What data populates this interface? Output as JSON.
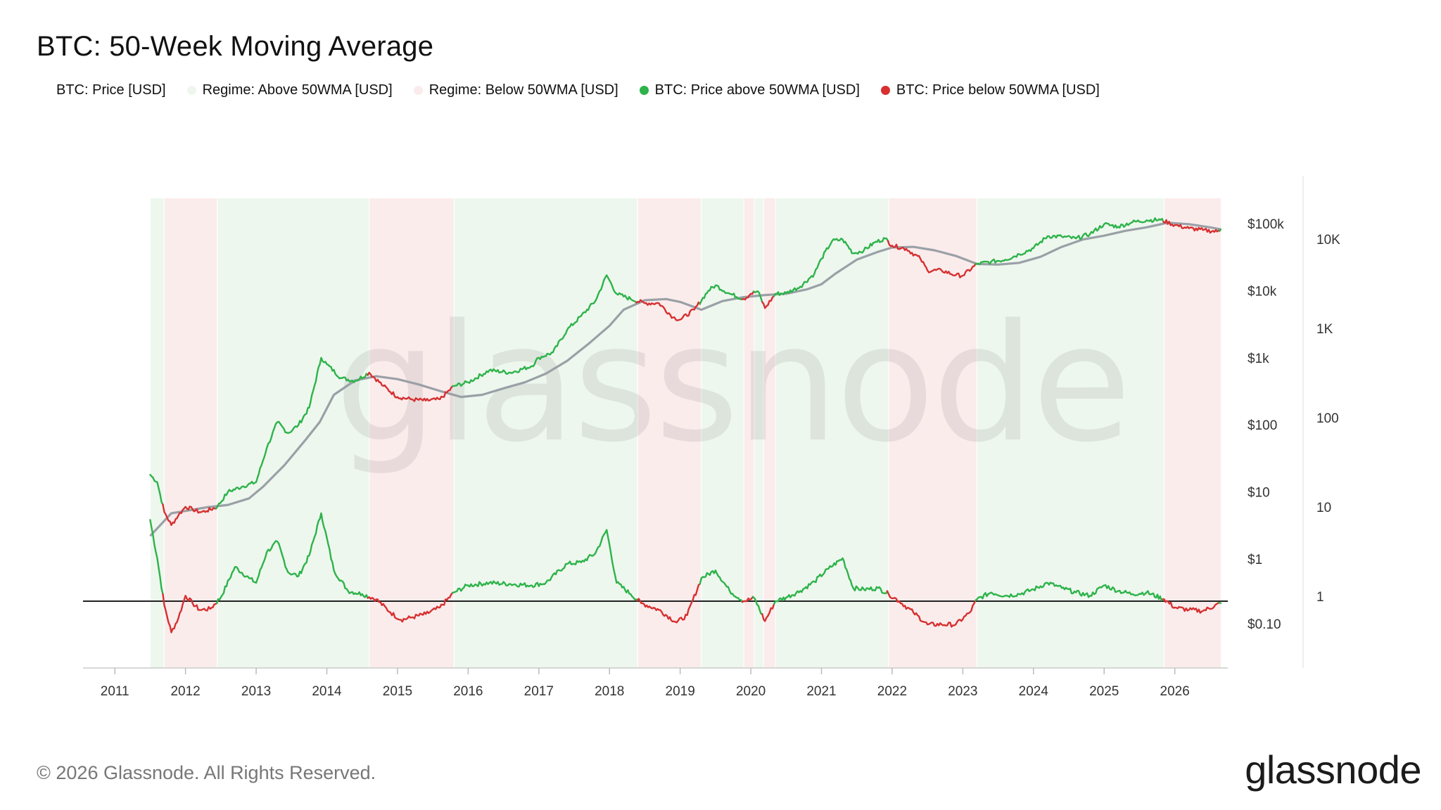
{
  "header": {
    "title": "BTC: 50-Week Moving Average"
  },
  "legend": [
    {
      "label": "BTC: Price [USD]",
      "color": "#ffffff"
    },
    {
      "label": "Regime: Above 50WMA [USD]",
      "color": "#eef7ee"
    },
    {
      "label": "Regime: Below 50WMA [USD]",
      "color": "#fbecec"
    },
    {
      "label": "BTC: Price above 50WMA [USD]",
      "color": "#2db34a"
    },
    {
      "label": "BTC: Price below 50WMA [USD]",
      "color": "#d63030"
    }
  ],
  "watermark": "glassnode",
  "footer": {
    "copyright": "© 2026 Glassnode. All Rights Reserved.",
    "brand": "glassnode"
  },
  "colors": {
    "above": "#2db34a",
    "below": "#d63030",
    "ma": "#9aa0a6",
    "regime_above_bg": "#eef7ee",
    "regime_below_bg": "#fbecec",
    "ratio_baseline": "#222222"
  },
  "chart_data": {
    "type": "line",
    "x_axis": {
      "ticks": [
        "2011",
        "2012",
        "2013",
        "2014",
        "2015",
        "2016",
        "2017",
        "2018",
        "2019",
        "2020",
        "2021",
        "2022",
        "2023",
        "2024",
        "2025",
        "2026"
      ],
      "range": [
        2010.55,
        2026.75
      ]
    },
    "y_axis_left": {
      "scale": "log",
      "ticks": [
        "$100k",
        "$10k",
        "$1k",
        "$100",
        "$10",
        "$1",
        "$0.10"
      ]
    },
    "y_axis_right": {
      "scale": "log",
      "ticks": [
        "10K",
        "1K",
        "100",
        "10",
        "1"
      ]
    },
    "regimes": [
      {
        "start": 2011.5,
        "end": 2011.7,
        "regime": "above"
      },
      {
        "start": 2011.7,
        "end": 2012.45,
        "regime": "below"
      },
      {
        "start": 2012.45,
        "end": 2014.6,
        "regime": "above"
      },
      {
        "start": 2014.6,
        "end": 2015.8,
        "regime": "below"
      },
      {
        "start": 2015.8,
        "end": 2018.4,
        "regime": "above"
      },
      {
        "start": 2018.4,
        "end": 2019.3,
        "regime": "below"
      },
      {
        "start": 2019.3,
        "end": 2019.9,
        "regime": "above"
      },
      {
        "start": 2019.9,
        "end": 2020.05,
        "regime": "below"
      },
      {
        "start": 2020.05,
        "end": 2020.18,
        "regime": "above"
      },
      {
        "start": 2020.18,
        "end": 2020.35,
        "regime": "below"
      },
      {
        "start": 2020.35,
        "end": 2021.95,
        "regime": "above"
      },
      {
        "start": 2021.95,
        "end": 2023.2,
        "regime": "below"
      },
      {
        "start": 2023.2,
        "end": 2025.85,
        "regime": "above"
      },
      {
        "start": 2025.85,
        "end": 2026.65,
        "regime": "below"
      }
    ],
    "series": [
      {
        "name": "BTC: Price [USD]",
        "x": [
          2011.5,
          2011.6,
          2011.7,
          2011.8,
          2011.9,
          2012.0,
          2012.1,
          2012.2,
          2012.3,
          2012.45,
          2012.6,
          2012.8,
          2013.0,
          2013.15,
          2013.3,
          2013.45,
          2013.6,
          2013.75,
          2013.92,
          2014.0,
          2014.2,
          2014.4,
          2014.6,
          2014.8,
          2015.0,
          2015.2,
          2015.4,
          2015.6,
          2015.8,
          2016.0,
          2016.3,
          2016.6,
          2016.9,
          2017.0,
          2017.2,
          2017.4,
          2017.6,
          2017.8,
          2017.96,
          2018.1,
          2018.3,
          2018.5,
          2018.7,
          2018.9,
          2019.0,
          2019.2,
          2019.4,
          2019.5,
          2019.7,
          2019.9,
          2020.0,
          2020.1,
          2020.2,
          2020.35,
          2020.5,
          2020.7,
          2020.9,
          2021.0,
          2021.15,
          2021.3,
          2021.45,
          2021.6,
          2021.75,
          2021.9,
          2022.0,
          2022.2,
          2022.4,
          2022.5,
          2022.7,
          2022.9,
          2023.0,
          2023.2,
          2023.4,
          2023.6,
          2023.8,
          2024.0,
          2024.2,
          2024.4,
          2024.6,
          2024.8,
          2025.0,
          2025.2,
          2025.4,
          2025.6,
          2025.8,
          2026.0,
          2026.2,
          2026.4,
          2026.6,
          2026.65
        ],
        "values": [
          18,
          14,
          5,
          3.2,
          4.5,
          6,
          5.5,
          5,
          5.2,
          6,
          10,
          12,
          14,
          45,
          110,
          75,
          100,
          180,
          1000,
          800,
          500,
          450,
          600,
          380,
          260,
          240,
          230,
          240,
          380,
          430,
          650,
          600,
          750,
          1000,
          1200,
          2600,
          4200,
          7000,
          17000,
          9000,
          7500,
          6500,
          6500,
          4000,
          3700,
          5200,
          10000,
          12000,
          9000,
          7500,
          9000,
          9800,
          5500,
          9000,
          9200,
          11500,
          18000,
          30000,
          55000,
          58000,
          36000,
          40000,
          52000,
          60000,
          47000,
          42000,
          30000,
          20000,
          20000,
          17000,
          16800,
          25000,
          27000,
          29000,
          35000,
          43000,
          65000,
          64000,
          60000,
          70000,
          98000,
          90000,
          105000,
          112000,
          114000,
          95000,
          85000,
          80000,
          76000,
          82000
        ]
      },
      {
        "name": "50WMA",
        "x": [
          2011.5,
          2011.8,
          2012.0,
          2012.3,
          2012.6,
          2012.9,
          2013.1,
          2013.4,
          2013.7,
          2013.9,
          2014.1,
          2014.4,
          2014.7,
          2015.0,
          2015.3,
          2015.6,
          2015.9,
          2016.2,
          2016.5,
          2016.8,
          2017.1,
          2017.4,
          2017.7,
          2018.0,
          2018.2,
          2018.5,
          2018.8,
          2019.0,
          2019.3,
          2019.6,
          2019.9,
          2020.2,
          2020.5,
          2020.8,
          2021.0,
          2021.2,
          2021.5,
          2021.8,
          2022.0,
          2022.3,
          2022.6,
          2022.9,
          2023.2,
          2023.5,
          2023.8,
          2024.1,
          2024.4,
          2024.7,
          2025.0,
          2025.3,
          2025.6,
          2025.9,
          2026.2,
          2026.5,
          2026.65
        ],
        "values": [
          2.2,
          4.8,
          5.2,
          5.9,
          6.4,
          8,
          12,
          25,
          60,
          110,
          280,
          460,
          530,
          480,
          400,
          320,
          260,
          280,
          350,
          430,
          580,
          900,
          1600,
          3000,
          5200,
          7200,
          7500,
          6800,
          5200,
          7000,
          8000,
          8600,
          9000,
          10500,
          12500,
          18000,
          29000,
          38000,
          44000,
          45000,
          40000,
          33000,
          25000,
          24500,
          26000,
          32000,
          45000,
          58000,
          66000,
          78000,
          88000,
          103000,
          98000,
          88000,
          82000
        ]
      },
      {
        "name": "Ratio",
        "x": [
          2011.5,
          2011.6,
          2011.7,
          2011.8,
          2011.9,
          2012.0,
          2012.1,
          2012.2,
          2012.35,
          2012.5,
          2012.7,
          2012.9,
          2013.0,
          2013.15,
          2013.3,
          2013.45,
          2013.6,
          2013.75,
          2013.92,
          2014.1,
          2014.3,
          2014.5,
          2014.7,
          2014.9,
          2015.05,
          2015.2,
          2015.4,
          2015.6,
          2015.8,
          2016.0,
          2016.3,
          2016.6,
          2016.9,
          2017.1,
          2017.4,
          2017.6,
          2017.8,
          2017.96,
          2018.1,
          2018.3,
          2018.45,
          2018.7,
          2018.95,
          2019.1,
          2019.3,
          2019.5,
          2019.7,
          2019.9,
          2020.05,
          2020.2,
          2020.35,
          2020.5,
          2020.7,
          2020.9,
          2021.1,
          2021.3,
          2021.45,
          2021.6,
          2021.8,
          2021.95,
          2022.1,
          2022.3,
          2022.5,
          2022.7,
          2022.9,
          2023.1,
          2023.2,
          2023.4,
          2023.6,
          2023.8,
          2024.0,
          2024.2,
          2024.4,
          2024.6,
          2024.8,
          2025.0,
          2025.2,
          2025.4,
          2025.6,
          2025.85,
          2026.0,
          2026.2,
          2026.4,
          2026.65
        ],
        "values": [
          8,
          3,
          0.9,
          0.45,
          0.65,
          1.15,
          0.95,
          0.8,
          0.82,
          1.1,
          2.4,
          1.8,
          1.6,
          3.5,
          4.6,
          2.1,
          1.9,
          3.2,
          9.5,
          2.2,
          1.3,
          1.2,
          1.05,
          0.75,
          0.62,
          0.66,
          0.72,
          0.85,
          1.25,
          1.5,
          1.6,
          1.55,
          1.5,
          1.6,
          2.6,
          2.7,
          3.4,
          6.2,
          1.6,
          1.2,
          0.95,
          0.8,
          0.58,
          0.7,
          1.8,
          2.2,
          1.3,
          1.0,
          1.08,
          0.6,
          1.0,
          1.1,
          1.3,
          1.65,
          2.3,
          3.0,
          1.4,
          1.35,
          1.4,
          1.2,
          1.0,
          0.75,
          0.55,
          0.55,
          0.55,
          0.75,
          1.05,
          1.25,
          1.15,
          1.2,
          1.35,
          1.6,
          1.4,
          1.25,
          1.15,
          1.5,
          1.3,
          1.2,
          1.25,
          1.05,
          0.85,
          0.8,
          0.78,
          0.95
        ]
      }
    ]
  }
}
